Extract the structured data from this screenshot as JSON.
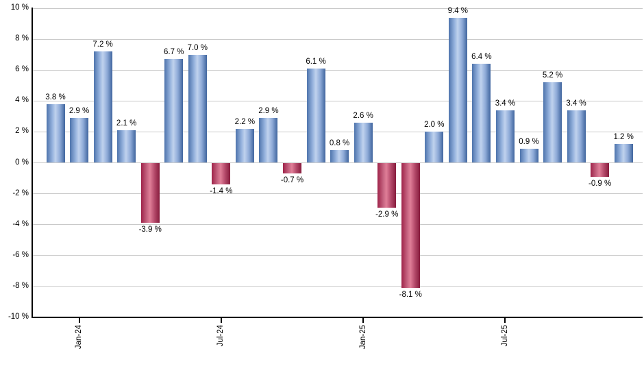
{
  "chart_data": {
    "type": "bar",
    "title": "",
    "xlabel": "",
    "ylabel": "",
    "ylim": [
      -10,
      10
    ],
    "grid_step": 2,
    "grid": true,
    "legend_position": "none",
    "values": [
      3.8,
      2.9,
      7.2,
      2.1,
      -3.9,
      6.7,
      7.0,
      -1.4,
      2.2,
      2.9,
      -0.7,
      6.1,
      0.8,
      2.6,
      -2.9,
      -8.1,
      2.0,
      9.4,
      6.4,
      3.4,
      0.9,
      5.2,
      3.4,
      -0.9,
      1.2
    ],
    "bar_labels": [
      "3.8 %",
      "2.9 %",
      "7.2 %",
      "2.1 %",
      "-3.9 %",
      "6.7 %",
      "7.0 %",
      "-1.4 %",
      "2.2 %",
      "2.9 %",
      "-0.7 %",
      "6.1 %",
      "0.8 %",
      "2.6 %",
      "-2.9 %",
      "-8.1 %",
      "2.0 %",
      "9.4 %",
      "6.4 %",
      "3.4 %",
      "0.9 %",
      "5.2 %",
      "3.4 %",
      "-0.9 %",
      "1.2 %"
    ],
    "y_tick_labels": [
      "10 %",
      "8 %",
      "6 %",
      "4 %",
      "2 %",
      "0 %",
      "-2 %",
      "-4 %",
      "-6 %",
      "-8 %",
      "-10 %"
    ],
    "x_ticks": [
      {
        "label": "Jan-24",
        "bar_index": 1
      },
      {
        "label": "Jul-24",
        "bar_index": 7
      },
      {
        "label": "Jan-25",
        "bar_index": 13
      },
      {
        "label": "Jul-25",
        "bar_index": 19
      }
    ],
    "colors": {
      "positive_gradient": [
        "#4e74ac",
        "#93b0dc",
        "#c0d2ee",
        "#8fabd8",
        "#40659e"
      ],
      "negative_gradient": [
        "#9e2349",
        "#c4617e",
        "#e07f98",
        "#b54a6b",
        "#871c3d"
      ],
      "gridline": "#c9c9c9",
      "axis": "#000000",
      "text": "#000000"
    }
  }
}
